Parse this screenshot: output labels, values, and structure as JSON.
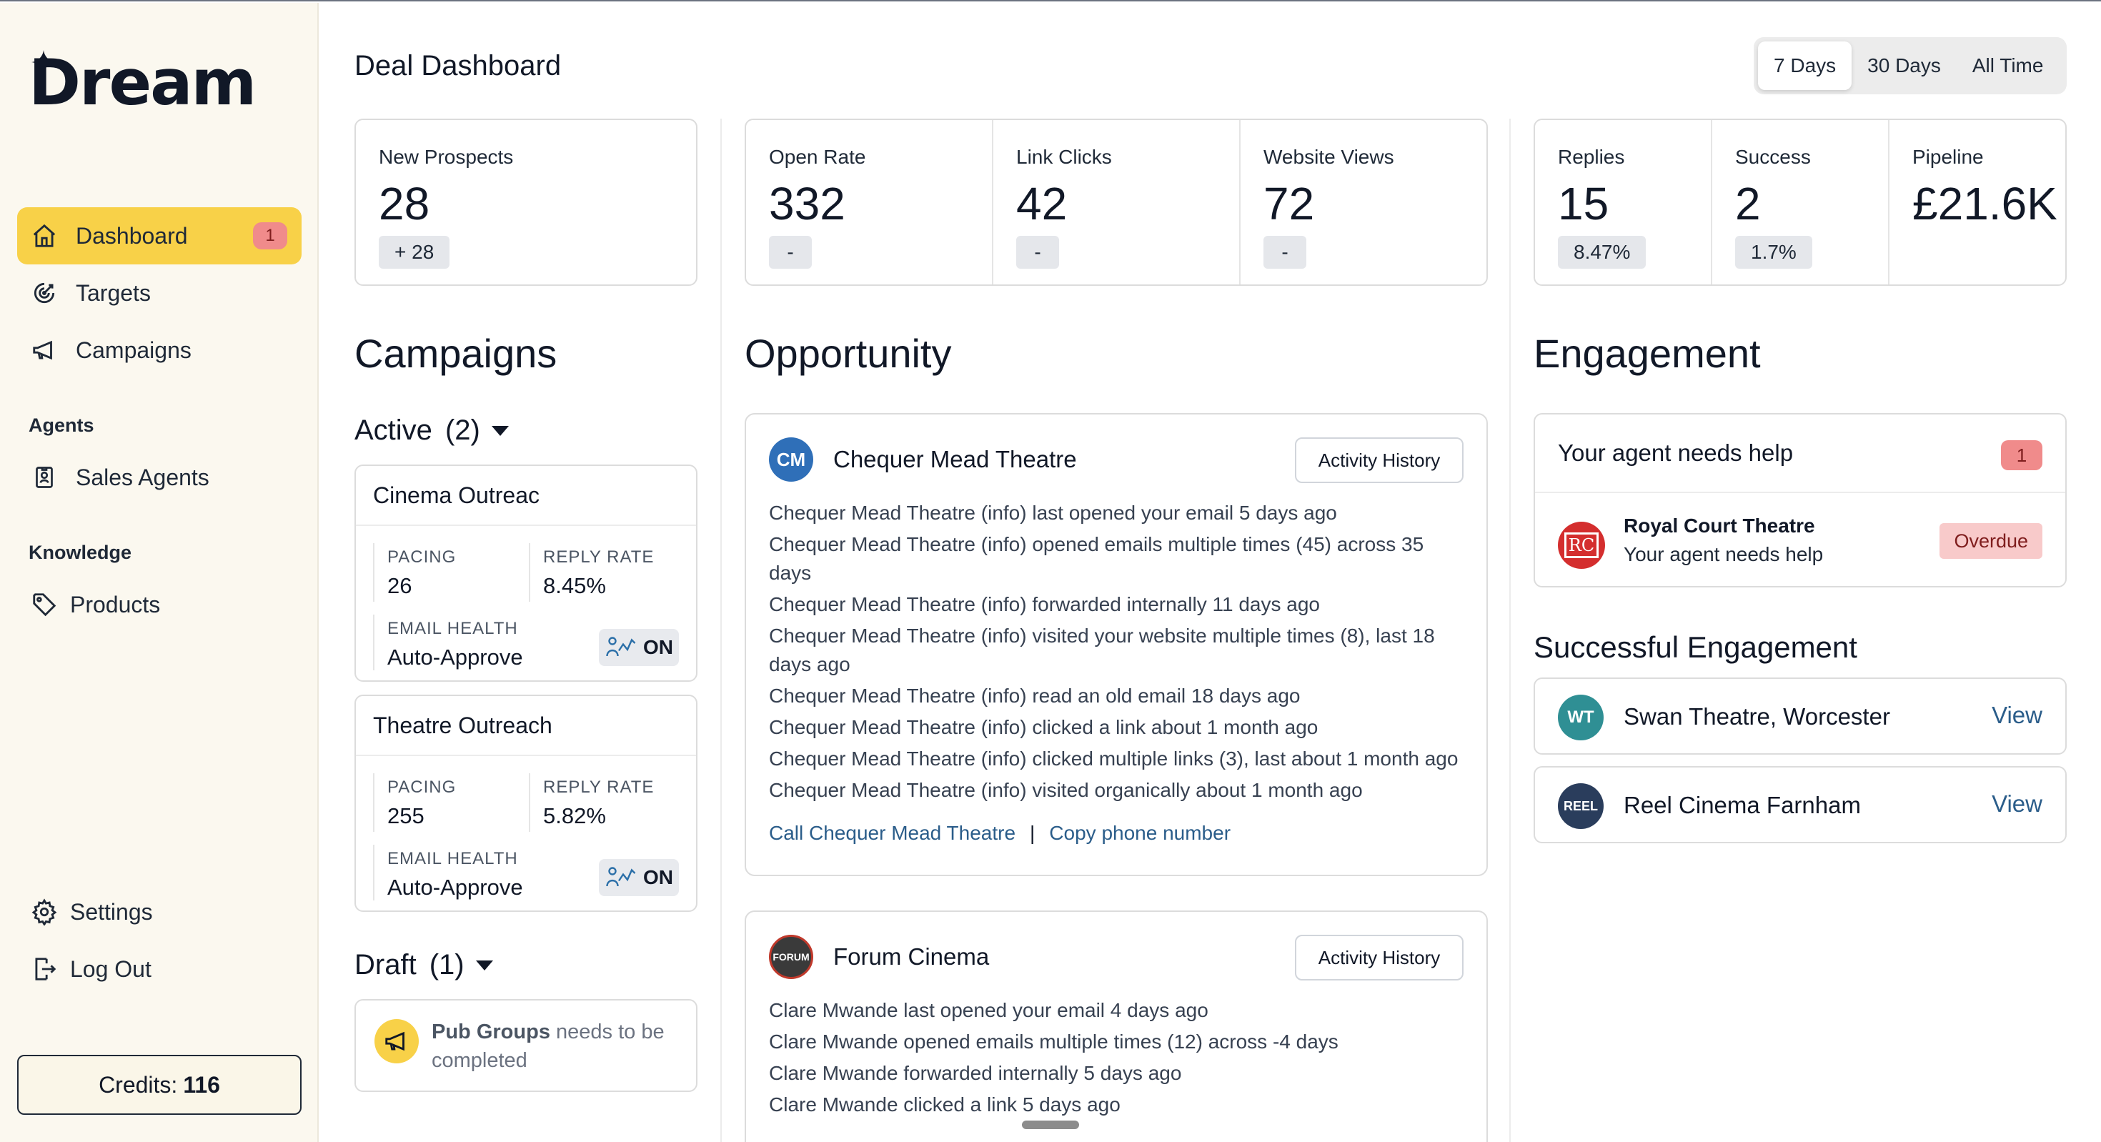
{
  "app": {
    "logo_text": "Dream",
    "page_title": "Deal Dashboard"
  },
  "sidebar": {
    "nav": [
      {
        "label": "Dashboard",
        "icon": "home-icon",
        "badge": "1",
        "active": true
      },
      {
        "label": "Targets",
        "icon": "target-icon"
      },
      {
        "label": "Campaigns",
        "icon": "megaphone-icon"
      }
    ],
    "agents_section": "Agents",
    "agents": [
      {
        "label": "Sales Agents",
        "icon": "badge-icon"
      }
    ],
    "knowledge_section": "Knowledge",
    "knowledge": [
      {
        "label": "Products",
        "icon": "tag-icon"
      }
    ],
    "settings_label": "Settings",
    "logout_label": "Log Out",
    "credits_label": "Credits:",
    "credits_value": "116"
  },
  "range": {
    "options": [
      "7 Days",
      "30 Days",
      "All Time"
    ],
    "selected": "7 Days"
  },
  "stats": {
    "prospects": {
      "label": "New Prospects",
      "value": "28",
      "chip": "+ 28"
    },
    "open_rate": {
      "label": "Open Rate",
      "value": "332",
      "chip": "-"
    },
    "link_clicks": {
      "label": "Link Clicks",
      "value": "42",
      "chip": "-"
    },
    "website_views": {
      "label": "Website Views",
      "value": "72",
      "chip": "-"
    },
    "replies": {
      "label": "Replies",
      "value": "15",
      "chip": "8.47%"
    },
    "success": {
      "label": "Success",
      "value": "2",
      "chip": "1.7%"
    },
    "pipeline": {
      "label": "Pipeline",
      "value": "£21.6K"
    }
  },
  "campaigns": {
    "heading": "Campaigns",
    "active_label": "Active",
    "active_count": "(2)",
    "draft_label": "Draft",
    "draft_count": "(1)",
    "pacing_label": "PACING",
    "reply_rate_label": "REPLY RATE",
    "email_health_label": "EMAIL HEALTH",
    "items": [
      {
        "name": "Cinema Outreac",
        "pacing": "26",
        "reply_rate": "8.45%",
        "email_health": "Auto-Approve",
        "toggle": "ON"
      },
      {
        "name": "Theatre Outreach",
        "pacing": "255",
        "reply_rate": "5.82%",
        "email_health": "Auto-Approve",
        "toggle": "ON"
      }
    ],
    "draft": {
      "name": "Pub Groups",
      "message": "needs to be completed"
    }
  },
  "opportunity": {
    "heading": "Opportunity",
    "activity_button": "Activity History",
    "cards": [
      {
        "name": "Chequer Mead Theatre",
        "avatar_text": "CM",
        "avatar_color": "#2f6fb8",
        "lines": [
          "Chequer Mead Theatre (info) last opened your email 5 days ago",
          "Chequer Mead Theatre (info) opened emails multiple times (45) across 35 days",
          "Chequer Mead Theatre (info) forwarded internally 11 days ago",
          "Chequer Mead Theatre (info) visited your website multiple times (8), last 18 days ago",
          "Chequer Mead Theatre (info) read an old email 18 days ago",
          "Chequer Mead Theatre (info) clicked a link about 1 month ago",
          "Chequer Mead Theatre (info) clicked multiple links (3), last about 1 month ago",
          "Chequer Mead Theatre (info) visited organically about 1 month ago"
        ],
        "call_link": "Call Chequer Mead Theatre",
        "copy_link": "Copy phone number"
      },
      {
        "name": "Forum Cinema",
        "avatar_text": "FORUM",
        "avatar_color": "#3a3a3a",
        "lines": [
          "Clare Mwande last opened your email 4 days ago",
          "Clare Mwande opened emails multiple times (12) across -4 days",
          "Clare Mwande forwarded internally 5 days ago",
          "Clare Mwande clicked a link 5 days ago"
        ]
      }
    ]
  },
  "engagement": {
    "heading": "Engagement",
    "help_title": "Your agent needs help",
    "help_badge": "1",
    "help_item": {
      "logo_text": "RC",
      "name": "Royal Court Theatre",
      "sub": "Your agent needs help",
      "status": "Overdue"
    },
    "successful_heading": "Successful Engagement",
    "view_label": "View",
    "successful": [
      {
        "name": "Swan Theatre, Worcester",
        "logo_text": "WT",
        "logo_color": "#2f8f94"
      },
      {
        "name": "Reel Cinema Farnham",
        "logo_text": "REEL",
        "logo_color": "#2a3d5c"
      }
    ]
  },
  "colors": {
    "accent_yellow": "#f8d148",
    "badge_red": "#f08b8b",
    "link_blue": "#2b5d8a",
    "sidebar_bg": "#fbf8ef"
  }
}
